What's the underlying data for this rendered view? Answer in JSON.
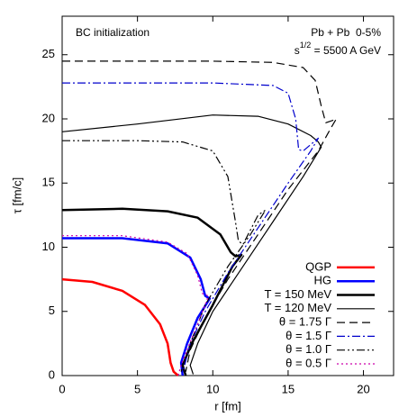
{
  "chart_data": {
    "type": "line",
    "annotations": [
      "BC initialization",
      "Pb + Pb  0-5%"
    ],
    "energy_label": {
      "base": "s",
      "sup": "1/2",
      "rest": " = 5500 A GeV"
    },
    "xlabel": "r [fm]",
    "ylabel": "τ [fm/c]",
    "xlim": [
      0,
      22
    ],
    "ylim": [
      0,
      28
    ],
    "xticks": [
      0,
      5,
      10,
      15,
      20
    ],
    "yticks": [
      0,
      5,
      10,
      15,
      20,
      25
    ],
    "legend": "bottom-right",
    "series": [
      {
        "name": "QGP",
        "color": "#ff0000",
        "dash": "solid",
        "width": 2.5,
        "x": [
          0,
          2,
          4,
          5.5,
          6.5,
          7,
          7.2,
          7.4,
          7.7
        ],
        "values": [
          7.5,
          7.3,
          6.6,
          5.5,
          4,
          2.5,
          1,
          0.3,
          0
        ]
      },
      {
        "name": "HG",
        "color": "#0000ff",
        "dash": "solid",
        "width": 2.5,
        "x": [
          0,
          4,
          7,
          8.5,
          9.2,
          9.5,
          9.8,
          9,
          8.3,
          7.9,
          8
        ],
        "values": [
          10.7,
          10.7,
          10.3,
          9.2,
          7.5,
          6.2,
          6.0,
          4.5,
          2.5,
          1,
          0
        ]
      },
      {
        "name": "T = 150 MeV",
        "color": "#000000",
        "dash": "solid",
        "width": 2.5,
        "x": [
          0,
          4,
          7,
          9,
          10.5,
          11.2,
          11.5,
          11.9,
          11.3,
          10,
          8.6,
          8,
          8.2
        ],
        "values": [
          12.9,
          13,
          12.8,
          12.3,
          11,
          9.6,
          9.3,
          9.4,
          8.5,
          5.5,
          2.5,
          0.8,
          0
        ]
      },
      {
        "name": "T = 120 MeV",
        "color": "#000000",
        "dash": "solid",
        "width": 1.2,
        "x": [
          0,
          5,
          10,
          13,
          15,
          16.5,
          17,
          17.2,
          16,
          14,
          12,
          10,
          9,
          8.5,
          8.7
        ],
        "values": [
          19,
          19.6,
          20.3,
          20.2,
          19.6,
          18.7,
          18.2,
          17.8,
          15.5,
          12,
          8.5,
          5,
          2.5,
          0.8,
          0.1
        ]
      },
      {
        "name": "θ = 1.75 Γ",
        "color": "#000000",
        "dash": "dashed",
        "width": 1.2,
        "x": [
          0,
          5,
          10,
          14,
          16,
          16.8,
          17.2,
          17.5,
          18,
          18.2,
          17.8,
          17,
          15,
          13,
          11,
          9.5,
          8.5,
          8.2
        ],
        "values": [
          24.5,
          24.5,
          24.5,
          24.4,
          24,
          23,
          21,
          19.7,
          19.9,
          20,
          19.2,
          17.5,
          14.5,
          11,
          7.5,
          4.5,
          2,
          0.3
        ]
      },
      {
        "name": "θ = 1.5 Γ",
        "color": "#0000cc",
        "dash": "dashdot",
        "width": 1.2,
        "x": [
          0,
          5,
          10,
          14,
          15,
          15.5,
          15.7,
          16,
          17,
          16.5,
          15,
          13,
          11,
          9.5,
          8.5,
          8
        ],
        "values": [
          22.8,
          22.8,
          22.8,
          22.6,
          22,
          20,
          17.6,
          17.5,
          18.5,
          17.5,
          15,
          11.5,
          8,
          5,
          2.5,
          0.2
        ]
      },
      {
        "name": "θ = 1.0 Γ",
        "color": "#000000",
        "dash": "dashdotdot",
        "width": 1.2,
        "x": [
          0,
          5,
          8,
          10,
          11,
          11.5,
          11.7,
          12,
          13,
          13.5,
          12.5,
          11,
          9.5,
          8.5,
          7.9
        ],
        "values": [
          18.3,
          18.3,
          18.2,
          17.5,
          15.5,
          12,
          10.5,
          10.2,
          12.5,
          12.9,
          11,
          8.5,
          5.5,
          2.5,
          0.3
        ]
      },
      {
        "name": "θ = 0.5 Γ",
        "color": "#cc00aa",
        "dash": "dotted",
        "width": 1.2,
        "x": [
          0,
          4,
          7,
          8.3,
          9,
          9.3,
          9.7,
          9.2,
          8.5,
          7.9,
          7.7
        ],
        "values": [
          10.9,
          10.9,
          10.4,
          9.5,
          7.8,
          6.4,
          6.2,
          4.6,
          2.6,
          0.8,
          0
        ]
      }
    ]
  }
}
